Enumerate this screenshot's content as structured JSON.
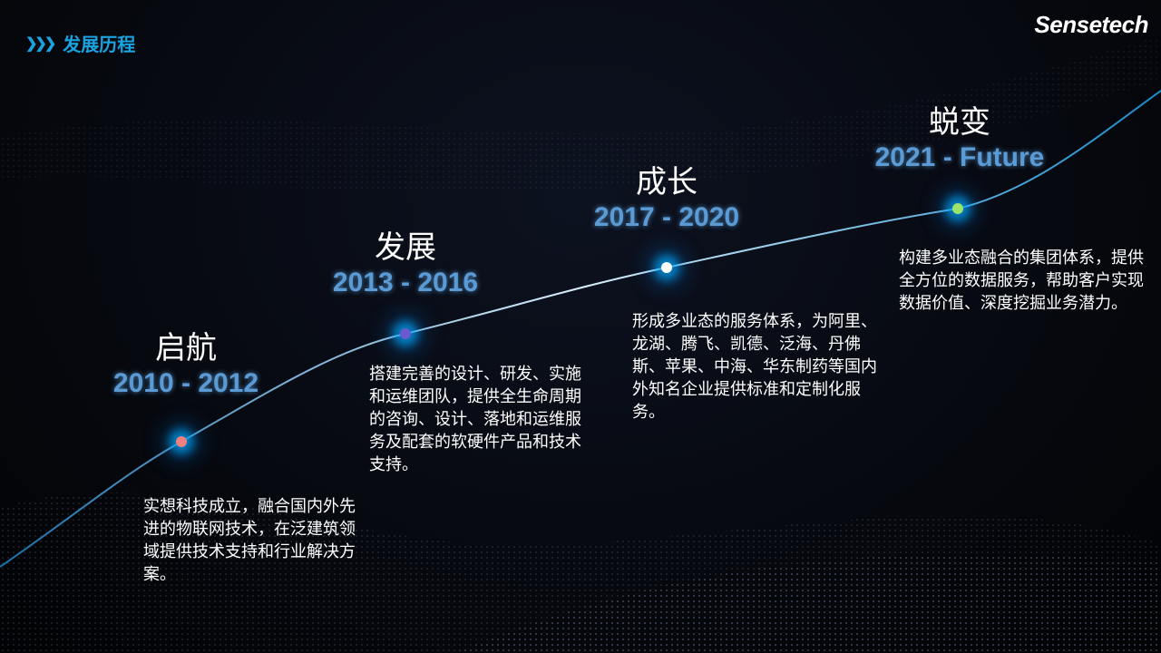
{
  "header": {
    "icon": "triple-chevron-right-icon",
    "title": "发展历程"
  },
  "logo": "Sensetech",
  "colors": {
    "accent": "#1aa3e0",
    "years": "#5b9bd5"
  },
  "milestones": [
    {
      "title": "启航",
      "years": "2010 - 2012",
      "desc": "实想科技成立，融合国内外先进的物联网技术，在泛建筑领域提供技术支持和行业解决方案。",
      "dot_color": "#f08080"
    },
    {
      "title": "发展",
      "years": "2013 - 2016",
      "desc": "搭建完善的设计、研发、实施和运维团队，提供全生命周期的咨询、设计、落地和运维服务及配套的软硬件产品和技术支持。",
      "dot_color": "#6a5acd"
    },
    {
      "title": "成长",
      "years": "2017 - 2020",
      "desc": "形成多业态的服务体系，为阿里、龙湖、腾飞、凯德、泛海、丹佛斯、苹果、中海、华东制药等国内外知名企业提供标准和定制化服务。",
      "dot_color": "#ffffff"
    },
    {
      "title": "蜕变",
      "years": "2021 - Future",
      "desc": "构建多业态融合的集团体系，提供全方位的数据服务，帮助客户实现数据价值、深度挖掘业务潜力。",
      "dot_color": "#9be36a"
    }
  ]
}
